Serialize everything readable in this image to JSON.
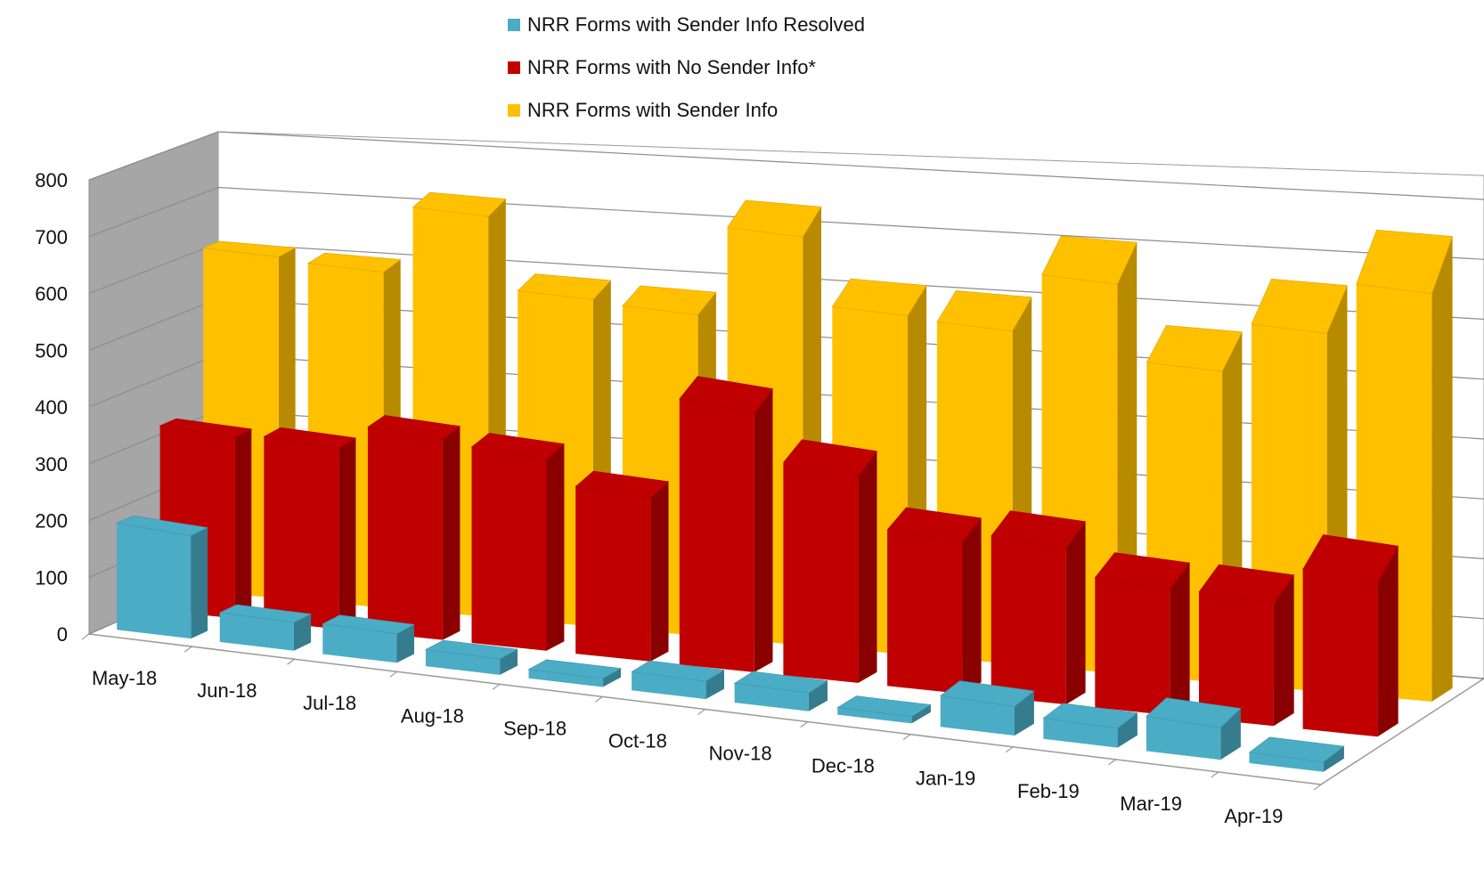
{
  "chart_data": {
    "type": "bar",
    "subtype": "3d-clustered-column",
    "categories": [
      "May-18",
      "Jun-18",
      "Jul-18",
      "Aug-18",
      "Sep-18",
      "Oct-18",
      "Nov-18",
      "Dec-18",
      "Jan-19",
      "Feb-19",
      "Mar-19",
      "Apr-19"
    ],
    "series": [
      {
        "name": "NRR Forms with Sender Info Resolved",
        "color": "#4BACC6",
        "values": [
          190,
          55,
          60,
          35,
          20,
          45,
          50,
          20,
          95,
          70,
          130,
          45
        ]
      },
      {
        "name": "NRR Forms with No Sender Info*",
        "color": "#C00000",
        "values": [
          330,
          340,
          390,
          385,
          340,
          560,
          465,
          355,
          380,
          320,
          325,
          430
        ]
      },
      {
        "name": "NRR Forms with Sender Info",
        "color": "#FFC000",
        "values": [
          615,
          610,
          735,
          605,
          600,
          770,
          645,
          640,
          755,
          610,
          710,
          815
        ]
      }
    ],
    "yticks": [
      0,
      100,
      200,
      300,
      400,
      500,
      600,
      700,
      800
    ],
    "ylim": [
      0,
      800
    ],
    "grid": true,
    "legend_position": "top"
  }
}
